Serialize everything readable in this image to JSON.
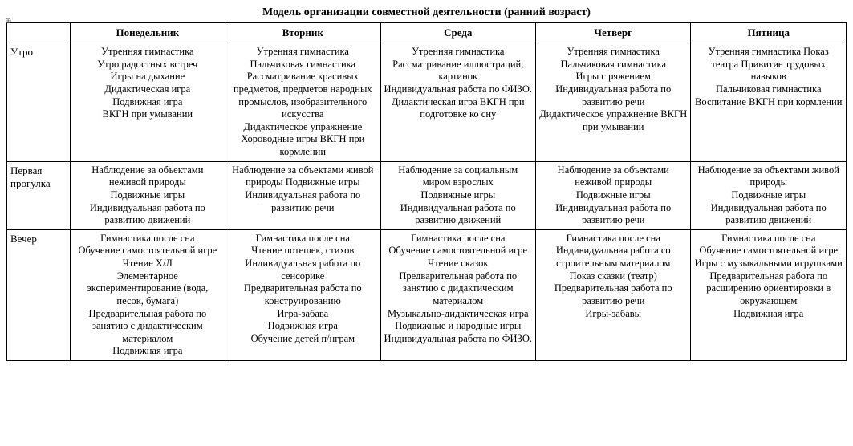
{
  "title": "Модель  организации совместной деятельности (ранний  возраст)",
  "columns": [
    "Понедельник",
    "Вторник",
    "Среда",
    "Четверг",
    "Пятница"
  ],
  "rows": [
    {
      "label": "Утро",
      "cells": [
        [
          "Утренняя гимнастика",
          "Утро радостных встреч",
          "Игры на дыхание",
          "Дидактическая игра",
          "Подвижная игра",
          "ВКГН при умывании"
        ],
        [
          "Утренняя гимнастика",
          "Пальчиковая гимнастика",
          "Рассматривание красивых предметов, предметов народных промыслов, изобразительного искусства",
          "Дидактическое упражнение",
          "Хороводные игры ВКГН при кормлении"
        ],
        [
          "Утренняя гимнастика",
          "Рассматривание иллюстраций, картинок",
          "Индивидуальная работа по ФИЗО.",
          "Дидактическая игра ВКГН при подготовке ко сну"
        ],
        [
          "Утренняя гимнастика",
          "Пальчиковая гимнастика",
          "Игры с ряжением",
          "Индивидуальная работа по развитию речи",
          "Дидактическое  упражнение ВКГН при умывании"
        ],
        [
          "Утренняя гимнастика Показ театра Привитие трудовых навыков",
          "Пальчиковая гимнастика",
          "Воспитание ВКГН при кормлении"
        ]
      ]
    },
    {
      "label": "Первая\nпрогулка",
      "cells": [
        [
          "Наблюдение за объектами неживой природы",
          "Подвижные игры",
          "Индивидуальная работа по развитию движений"
        ],
        [
          "Наблюдение за объектами живой природы Подвижные игры Индивидуальная работа по развитию речи"
        ],
        [
          "Наблюдение за социальным миром взрослых",
          "Подвижные игры",
          "Индивидуальная работа по развитию движений"
        ],
        [
          "Наблюдение за  объектами неживой природы",
          "Подвижные игры",
          "Индивидуальная работа по развитию речи"
        ],
        [
          "Наблюдение за  объектами живой природы",
          "Подвижные игры",
          "Индивидуальная работа  по развитию движений"
        ]
      ]
    },
    {
      "label": "Вечер",
      "cells": [
        [
          "Гимнастика после сна",
          "Обучение самостоятельной игре Чтение Х/Л",
          "Элементарное экспериментирование (вода, песок, бумага)",
          "Предварительная работа по занятию с дидактическим материалом",
          "Подвижная игра"
        ],
        [
          "Гимнастика после сна",
          "Чтение потешек, стихов",
          "Индивидуальная работа по сенсорике",
          "Предварительная работа по конструированию",
          "Игра-забава",
          "Подвижная игра",
          "Обучение детей п/нграм"
        ],
        [
          "Гимнастика после сна",
          "Обучение самостоятельной игре",
          "Чтение сказок",
          "Предварительная работа по занятию с дидактическим материалом",
          "Музыкально-дидактическая игра",
          "Подвижные и народные игры",
          "Индивидуальная работа по ФИЗО."
        ],
        [
          "Гимнастика после сна",
          "Индивидуальная работа со строительным материалом",
          "Показ сказки (театр)",
          "Предварительная работа по развитию речи",
          "Игры-забавы"
        ],
        [
          "Гимнастика после сна",
          "Обучение самостоятельной игре",
          "Игры с музыкальными игрушками",
          "Предварительная работа по расширению ориентировки в окружающем",
          "Подвижная игра"
        ]
      ]
    }
  ]
}
